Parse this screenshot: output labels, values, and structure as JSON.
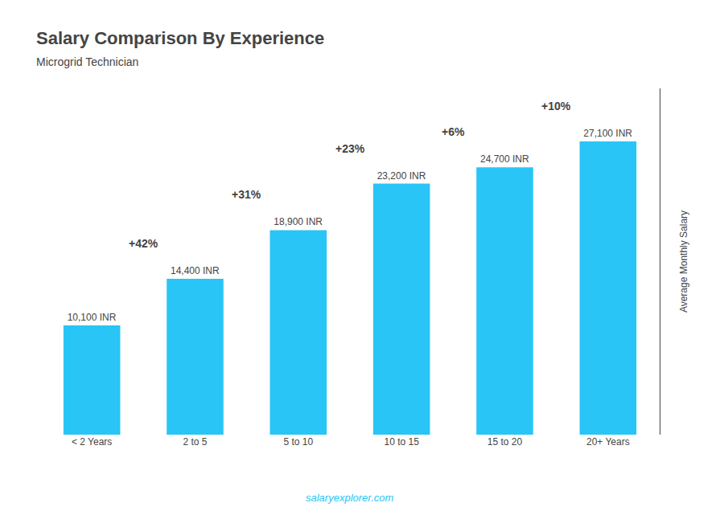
{
  "chart_data": {
    "type": "bar",
    "title": "Salary Comparison By Experience",
    "subtitle": "Microgrid Technician",
    "ylabel": "Average Monthly Salary",
    "categories": [
      "< 2 Years",
      "2 to 5",
      "5 to 10",
      "10 to 15",
      "15 to 20",
      "20+ Years"
    ],
    "values": [
      10100,
      14400,
      18900,
      23200,
      24700,
      27100
    ],
    "value_labels": [
      "10,100 INR",
      "14,400 INR",
      "18,900 INR",
      "23,200 INR",
      "24,700 INR",
      "27,100 INR"
    ],
    "data_labels": true,
    "annotations": [
      "+42%",
      "+31%",
      "+23%",
      "+6%",
      "+10%"
    ],
    "watermark": "salaryexplorer.com",
    "color": "#29C5F6",
    "ylim": [
      0,
      32000
    ],
    "grid": false,
    "tick_labels": "x"
  }
}
